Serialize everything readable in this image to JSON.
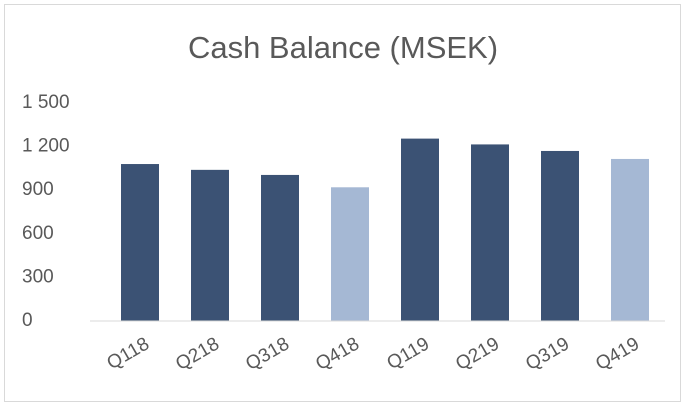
{
  "chart_data": {
    "type": "bar",
    "title": "Cash Balance (MSEK)",
    "categories": [
      "Q118",
      "Q218",
      "Q318",
      "Q418",
      "Q119",
      "Q219",
      "Q319",
      "Q419"
    ],
    "values": [
      1080,
      1040,
      1005,
      920,
      1255,
      1215,
      1170,
      1115
    ],
    "colors": [
      "#3b5274",
      "#3b5274",
      "#3b5274",
      "#a5b8d4",
      "#3b5274",
      "#3b5274",
      "#3b5274",
      "#a5b8d4"
    ],
    "ylim": [
      0,
      1500
    ],
    "yticks": [
      0,
      300,
      600,
      900,
      {
        "value": 1200,
        "label": "1 200"
      },
      {
        "value": 1500,
        "label": "1 500"
      }
    ],
    "grid": false
  }
}
